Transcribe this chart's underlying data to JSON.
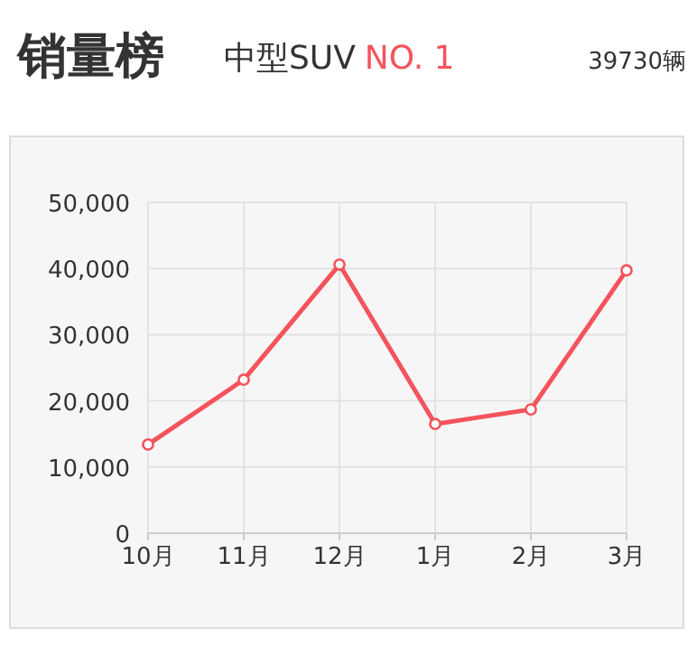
{
  "chart_data": {
    "type": "line",
    "title": "销量榜",
    "subtitle": "中型SUV NO. 1",
    "annotations": [
      "39730辆"
    ],
    "categories": [
      "10月",
      "11月",
      "12月",
      "1月",
      "2月",
      "3月"
    ],
    "series": [
      {
        "color": "#f5535b",
        "values": [
          13400,
          23200,
          40600,
          16500,
          18700,
          39730
        ]
      }
    ],
    "ylim": [
      0,
      50000
    ],
    "yticks": [
      {
        "value": 0,
        "label": "0"
      },
      {
        "value": 10000,
        "label": "10,000"
      },
      {
        "value": 20000,
        "label": "20,000"
      },
      {
        "value": 30000,
        "label": "30,000"
      },
      {
        "value": 40000,
        "label": "40,000"
      },
      {
        "value": 50000,
        "label": "50,000"
      }
    ],
    "grid": true,
    "marker": "circle",
    "line_style": "solid"
  }
}
